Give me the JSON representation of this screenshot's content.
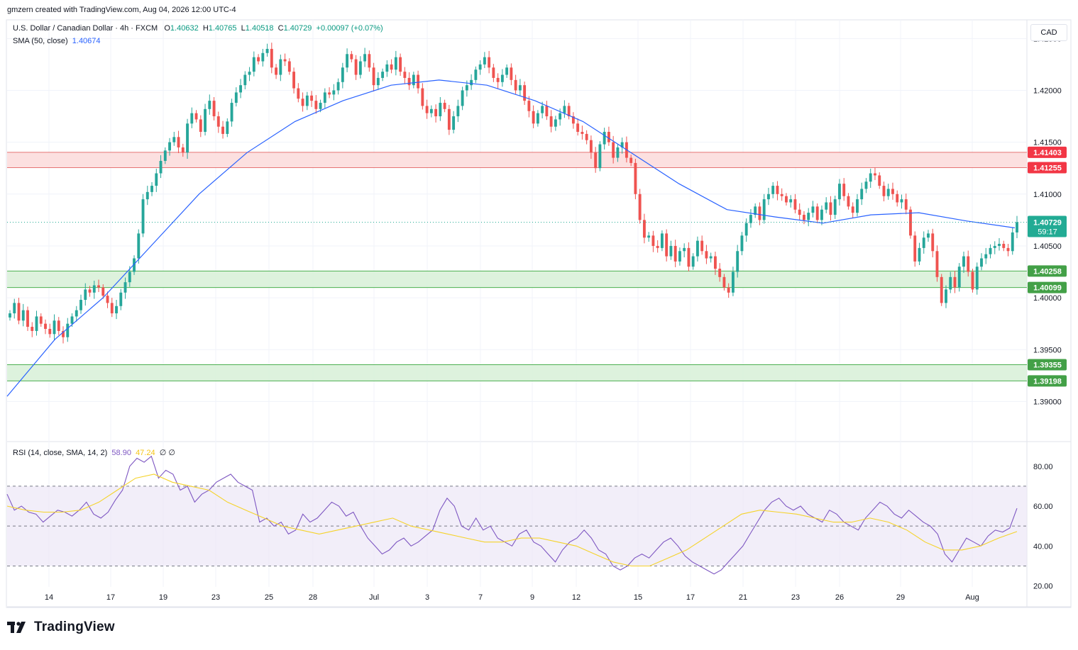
{
  "credit": "gmzern created with TradingView.com, Aug 04, 2026 12:00 UTC-4",
  "symbol": "U.S. Dollar / Canadian Dollar · 4h · FXCM",
  "ohlc": {
    "o_label": "O",
    "o": "1.40632",
    "h_label": "H",
    "h": "1.40765",
    "l_label": "L",
    "l": "1.40518",
    "c_label": "C",
    "c": "1.40729",
    "chg": "+0.00097 (+0.07%)"
  },
  "sma_label": "SMA (50, close)",
  "sma_value": "1.40674",
  "rsi_label": "RSI (14, close, SMA, 14, 2)",
  "rsi_value": "58.90",
  "rsi_sma_value": "47.24",
  "rsi_extra": "∅ ∅",
  "currency": "CAD",
  "logo_text": "TradingView",
  "colors": {
    "up": "#26a69a",
    "down": "#ef5350",
    "sma": "#2962ff",
    "rsi": "#7e57c2",
    "rsi_sma": "#f5d32a",
    "resistance_fill": "#fcdada",
    "support_fill": "#d7f0d7",
    "support_line": "#4caf50",
    "resistance_line": "#e57373",
    "last_price_bg": "#22ab94"
  },
  "chart_data": {
    "type": "candlestick",
    "price_axis": {
      "ticks": [
        1.39,
        1.395,
        1.4,
        1.405,
        1.41,
        1.415,
        1.42,
        1.425
      ],
      "labels": [
        "1.39000",
        "1.39500",
        "1.40000",
        "1.40500",
        "1.41000",
        "1.41500",
        "1.42000",
        "1.42500"
      ]
    },
    "x_labels": [
      "14",
      "17",
      "19",
      "23",
      "25",
      "28",
      "Jul",
      "3",
      "7",
      "9",
      "12",
      "15",
      "17",
      "21",
      "23",
      "26",
      "29",
      "Aug"
    ],
    "zones": [
      {
        "kind": "resistance",
        "top": 1.41403,
        "bottom": 1.41255,
        "top_label": "1.41403",
        "bottom_label": "1.41255"
      },
      {
        "kind": "support",
        "top": 1.40258,
        "bottom": 1.40099,
        "top_label": "1.40258",
        "bottom_label": "1.40099"
      },
      {
        "kind": "support",
        "top": 1.39355,
        "bottom": 1.39198,
        "top_label": "1.39355",
        "bottom_label": "1.39198"
      }
    ],
    "last_price": {
      "value": 1.40729,
      "label": "1.40729",
      "countdown": "59:17"
    },
    "closes": [
      1.3985,
      1.3995,
      1.3978,
      1.3988,
      1.3972,
      1.3968,
      1.3982,
      1.3975,
      1.397,
      1.3965,
      1.3978,
      1.3968,
      1.3962,
      1.3975,
      1.3982,
      1.3988,
      1.3998,
      1.4008,
      1.4005,
      1.4012,
      1.401,
      1.4002,
      1.3995,
      1.3985,
      1.3992,
      1.4005,
      1.4015,
      1.4025,
      1.4038,
      1.4062,
      1.4095,
      1.4102,
      1.4108,
      1.412,
      1.4132,
      1.4142,
      1.415,
      1.4155,
      1.4145,
      1.414,
      1.4168,
      1.4178,
      1.4172,
      1.416,
      1.4182,
      1.419,
      1.4175,
      1.4165,
      1.4158,
      1.417,
      1.4188,
      1.4198,
      1.4205,
      1.4215,
      1.4218,
      1.4232,
      1.4228,
      1.4236,
      1.424,
      1.4222,
      1.4215,
      1.423,
      1.4228,
      1.4218,
      1.4202,
      1.4192,
      1.4185,
      1.4195,
      1.419,
      1.4182,
      1.4188,
      1.4198,
      1.4196,
      1.42,
      1.4208,
      1.4222,
      1.4235,
      1.423,
      1.4215,
      1.4228,
      1.4235,
      1.4222,
      1.4205,
      1.4212,
      1.4218,
      1.4225,
      1.422,
      1.4232,
      1.4218,
      1.4212,
      1.4205,
      1.4215,
      1.4202,
      1.4185,
      1.4178,
      1.4182,
      1.4175,
      1.4188,
      1.4182,
      1.4162,
      1.4175,
      1.4185,
      1.42,
      1.4205,
      1.421,
      1.422,
      1.4225,
      1.4232,
      1.4222,
      1.4212,
      1.4208,
      1.4215,
      1.4222,
      1.421,
      1.42,
      1.4205,
      1.419,
      1.418,
      1.4168,
      1.4178,
      1.4185,
      1.4175,
      1.4165,
      1.4172,
      1.4178,
      1.4185,
      1.4175,
      1.4168,
      1.416,
      1.4158,
      1.4152,
      1.414,
      1.4125,
      1.4148,
      1.416,
      1.415,
      1.4135,
      1.4145,
      1.415,
      1.4135,
      1.413,
      1.41,
      1.4075,
      1.4058,
      1.406,
      1.405,
      1.4048,
      1.4062,
      1.404,
      1.405,
      1.4035,
      1.4045,
      1.4048,
      1.403,
      1.404,
      1.4055,
      1.4045,
      1.4038,
      1.404,
      1.4028,
      1.402,
      1.401,
      1.4005,
      1.4025,
      1.4045,
      1.406,
      1.4072,
      1.408,
      1.4088,
      1.4075,
      1.4095,
      1.41,
      1.4108,
      1.41,
      1.4098,
      1.4092,
      1.4095,
      1.4085,
      1.408,
      1.4075,
      1.4082,
      1.4088,
      1.4075,
      1.4085,
      1.4092,
      1.408,
      1.4095,
      1.411,
      1.4098,
      1.4088,
      1.4082,
      1.4095,
      1.4105,
      1.4112,
      1.412,
      1.4118,
      1.4108,
      1.4098,
      1.4105,
      1.41,
      1.4092,
      1.4095,
      1.4085,
      1.406,
      1.4035,
      1.4048,
      1.4058,
      1.4062,
      1.4045,
      1.402,
      1.3995,
      1.4008,
      1.402,
      1.401,
      1.403,
      1.404,
      1.4025,
      1.4008,
      1.403,
      1.4038,
      1.4042,
      1.4048,
      1.405,
      1.4052,
      1.4048,
      1.4045,
      1.4063,
      1.40729
    ],
    "sma": [
      1.3905,
      1.396,
      1.4,
      1.405,
      1.41,
      1.414,
      1.417,
      1.419,
      1.4205,
      1.421,
      1.4205,
      1.419,
      1.417,
      1.414,
      1.411,
      1.4085,
      1.4078,
      1.4072,
      1.408,
      1.4082,
      1.4074,
      1.40674
    ],
    "rsi_axis": {
      "ticks": [
        20,
        40,
        60,
        80
      ],
      "labels": [
        "20.00",
        "40.00",
        "60.00",
        "80.00"
      ],
      "band": [
        30,
        70
      ]
    },
    "rsi": [
      66,
      58,
      60,
      57,
      56,
      52,
      55,
      58,
      57,
      55,
      58,
      62,
      56,
      54,
      57,
      63,
      68,
      80,
      84,
      82,
      85,
      74,
      78,
      76,
      68,
      70,
      62,
      66,
      68,
      72,
      74,
      76,
      72,
      70,
      68,
      52,
      54,
      50,
      52,
      46,
      48,
      56,
      52,
      54,
      58,
      62,
      60,
      55,
      57,
      50,
      44,
      40,
      36,
      38,
      42,
      44,
      40,
      42,
      45,
      48,
      58,
      64,
      60,
      50,
      48,
      54,
      48,
      50,
      44,
      42,
      40,
      46,
      48,
      42,
      40,
      36,
      32,
      38,
      42,
      44,
      48,
      44,
      38,
      36,
      30,
      28,
      30,
      34,
      36,
      34,
      38,
      42,
      44,
      40,
      35,
      32,
      30,
      28,
      26,
      28,
      32,
      36,
      40,
      46,
      52,
      58,
      62,
      64,
      60,
      58,
      60,
      56,
      54,
      52,
      58,
      56,
      52,
      50,
      48,
      54,
      58,
      62,
      60,
      56,
      54,
      58,
      55,
      52,
      50,
      46,
      36,
      32,
      38,
      44,
      42,
      40,
      45,
      48,
      47,
      49,
      58.9
    ],
    "rsi_sma": [
      60,
      58,
      57,
      57,
      58,
      62,
      68,
      74,
      76,
      72,
      70,
      68,
      62,
      58,
      54,
      50,
      48,
      46,
      48,
      50,
      52,
      54,
      50,
      48,
      46,
      44,
      42,
      42,
      44,
      44,
      42,
      40,
      36,
      32,
      30,
      30,
      34,
      38,
      44,
      50,
      56,
      58,
      57,
      56,
      54,
      52,
      52,
      54,
      52,
      48,
      42,
      38,
      38,
      40,
      44,
      47.24
    ]
  }
}
